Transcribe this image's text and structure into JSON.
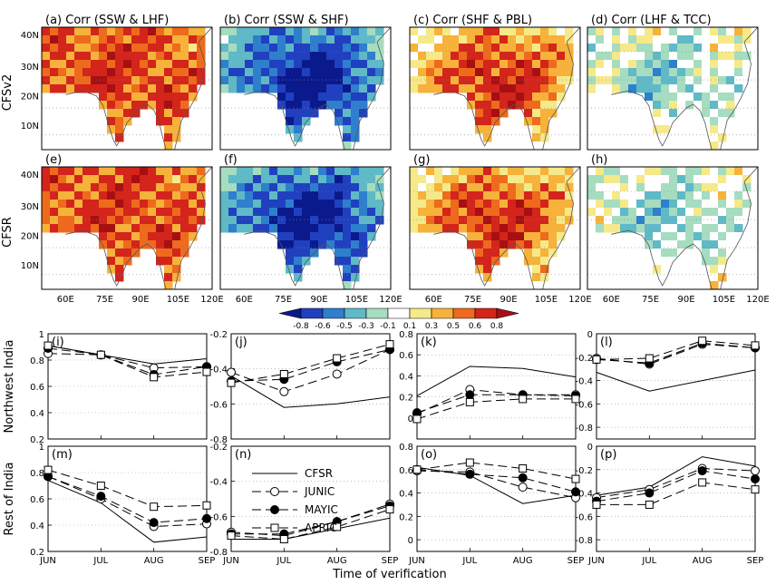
{
  "figure": {
    "map_row_labels": [
      "CFSv2",
      "CFSR"
    ],
    "map_lon_ticks": [
      "60E",
      "75E",
      "90E",
      "105E",
      "120E"
    ],
    "map_lat_ticks": [
      "40N",
      "30N",
      "20N",
      "10N"
    ],
    "colorbar_ticks": [
      "-0.8",
      "-0.6",
      "-0.5",
      "-0.3",
      "-0.1",
      "0.1",
      "0.3",
      "0.5",
      "0.6",
      "0.8"
    ],
    "colorbar_colors": [
      "#0a1a8c",
      "#2040c0",
      "#2e7fcc",
      "#5fb9c6",
      "#a6dcc0",
      "#ffffff",
      "#f5e98a",
      "#f6b23a",
      "#ee6a1c",
      "#d3251b",
      "#a80f12"
    ],
    "line_row_labels": [
      "Northwest India",
      "Rest of India"
    ],
    "xlabel": "Time of verification",
    "months": [
      "JUN",
      "JUL",
      "AUG",
      "SEP"
    ]
  },
  "maps": [
    {
      "label": "(a)",
      "title": "Corr (SSW & LHF)",
      "pattern": "positive_strong"
    },
    {
      "label": "(b)",
      "title": "Corr (SSW & SHF)",
      "pattern": "negative_strong"
    },
    {
      "label": "(c)",
      "title": "Corr (SHF & PBL)",
      "pattern": "positive_mixed"
    },
    {
      "label": "(d)",
      "title": "Corr (LHF & TCC)",
      "pattern": "weak_mixed"
    },
    {
      "label": "(e)",
      "title": "",
      "pattern": "positive_strong"
    },
    {
      "label": "(f)",
      "title": "",
      "pattern": "negative_strong"
    },
    {
      "label": "(g)",
      "title": "",
      "pattern": "positive_mixed"
    },
    {
      "label": "(h)",
      "title": "",
      "pattern": "weak_mixed"
    }
  ],
  "chart_data": [
    {
      "type": "line",
      "panel": "(i)",
      "region": "Northwest India",
      "x": [
        "JUN",
        "JUL",
        "AUG",
        "SEP"
      ],
      "ylim": [
        0.2,
        1.0
      ],
      "yticks": [
        "0.2",
        "0.4",
        "0.6",
        "0.8",
        "1"
      ],
      "series": [
        {
          "name": "CFSR",
          "values": [
            0.91,
            0.84,
            0.77,
            0.81
          ]
        },
        {
          "name": "JUNIC",
          "values": [
            0.85,
            0.84,
            0.74,
            0.75
          ]
        },
        {
          "name": "MAYIC",
          "values": [
            0.89,
            0.84,
            0.69,
            0.75
          ]
        },
        {
          "name": "APRIC",
          "values": [
            0.91,
            0.84,
            0.67,
            0.71
          ]
        }
      ]
    },
    {
      "type": "line",
      "panel": "(j)",
      "region": "Northwest India",
      "x": [
        "JUN",
        "JUL",
        "AUG",
        "SEP"
      ],
      "ylim": [
        -0.8,
        -0.2
      ],
      "yticks": [
        "-0.8",
        "-0.6",
        "-0.4",
        "-0.2"
      ],
      "series": [
        {
          "name": "CFSR",
          "values": [
            -0.44,
            -0.62,
            -0.6,
            -0.56
          ]
        },
        {
          "name": "JUNIC",
          "values": [
            -0.42,
            -0.53,
            -0.43,
            -0.29
          ]
        },
        {
          "name": "MAYIC",
          "values": [
            -0.47,
            -0.46,
            -0.36,
            -0.29
          ]
        },
        {
          "name": "APRIC",
          "values": [
            -0.48,
            -0.43,
            -0.34,
            -0.26
          ]
        }
      ]
    },
    {
      "type": "line",
      "panel": "(k)",
      "region": "Northwest India",
      "x": [
        "JUN",
        "JUL",
        "AUG",
        "SEP"
      ],
      "ylim": [
        -0.2,
        0.8
      ],
      "yticks": [
        "0",
        "0.2",
        "0.4",
        "0.6",
        "0.8"
      ],
      "series": [
        {
          "name": "CFSR",
          "values": [
            0.21,
            0.49,
            0.47,
            0.39
          ]
        },
        {
          "name": "JUNIC",
          "values": [
            0.04,
            0.27,
            0.22,
            0.22
          ]
        },
        {
          "name": "MAYIC",
          "values": [
            0.05,
            0.22,
            0.22,
            0.21
          ]
        },
        {
          "name": "APRIC",
          "values": [
            -0.01,
            0.15,
            0.18,
            0.18
          ]
        }
      ]
    },
    {
      "type": "line",
      "panel": "(l)",
      "region": "Northwest India",
      "x": [
        "JUN",
        "JUL",
        "AUG",
        "SEP"
      ],
      "ylim": [
        -0.9,
        0.0
      ],
      "yticks": [
        "-0.8",
        "-0.6",
        "-0.4",
        "-0.2",
        "0"
      ],
      "series": [
        {
          "name": "CFSR",
          "values": [
            -0.33,
            -0.49,
            -0.4,
            -0.31
          ]
        },
        {
          "name": "JUNIC",
          "values": [
            -0.21,
            -0.26,
            -0.09,
            -0.12
          ]
        },
        {
          "name": "MAYIC",
          "values": [
            -0.22,
            -0.25,
            -0.08,
            -0.12
          ]
        },
        {
          "name": "APRIC",
          "values": [
            -0.22,
            -0.21,
            -0.06,
            -0.1
          ]
        }
      ]
    },
    {
      "type": "line",
      "panel": "(m)",
      "region": "Rest of India",
      "x": [
        "JUN",
        "JUL",
        "AUG",
        "SEP"
      ],
      "ylim": [
        0.2,
        1.0
      ],
      "yticks": [
        "0.2",
        "0.4",
        "0.6",
        "0.8",
        "1"
      ],
      "series": [
        {
          "name": "CFSR",
          "values": [
            0.74,
            0.57,
            0.27,
            0.31
          ]
        },
        {
          "name": "JUNIC",
          "values": [
            0.77,
            0.6,
            0.39,
            0.41
          ]
        },
        {
          "name": "MAYIC",
          "values": [
            0.77,
            0.62,
            0.42,
            0.45
          ]
        },
        {
          "name": "APRIC",
          "values": [
            0.82,
            0.7,
            0.54,
            0.55
          ]
        }
      ]
    },
    {
      "type": "line",
      "panel": "(n)",
      "region": "Rest of India",
      "x": [
        "JUN",
        "JUL",
        "AUG",
        "SEP"
      ],
      "ylim": [
        -0.8,
        -0.2
      ],
      "yticks": [
        "-0.8",
        "-0.6",
        "-0.4",
        "-0.2"
      ],
      "series": [
        {
          "name": "CFSR",
          "values": [
            -0.73,
            -0.73,
            -0.67,
            -0.61
          ]
        },
        {
          "name": "JUNIC",
          "values": [
            -0.69,
            -0.71,
            -0.63,
            -0.53
          ]
        },
        {
          "name": "MAYIC",
          "values": [
            -0.7,
            -0.7,
            -0.63,
            -0.54
          ]
        },
        {
          "name": "APRIC",
          "values": [
            -0.71,
            -0.73,
            -0.66,
            -0.56
          ]
        }
      ]
    },
    {
      "type": "line",
      "panel": "(o)",
      "region": "Rest of India",
      "x": [
        "JUN",
        "JUL",
        "AUG",
        "SEP"
      ],
      "ylim": [
        -0.1,
        0.8
      ],
      "yticks": [
        "0",
        "0.2",
        "0.4",
        "0.6",
        "0.8"
      ],
      "series": [
        {
          "name": "CFSR",
          "values": [
            0.62,
            0.55,
            0.31,
            0.38
          ]
        },
        {
          "name": "JUNIC",
          "values": [
            0.59,
            0.58,
            0.45,
            0.36
          ]
        },
        {
          "name": "MAYIC",
          "values": [
            0.6,
            0.56,
            0.53,
            0.41
          ]
        },
        {
          "name": "APRIC",
          "values": [
            0.6,
            0.66,
            0.61,
            0.52
          ]
        }
      ]
    },
    {
      "type": "line",
      "panel": "(p)",
      "region": "Rest of India",
      "x": [
        "JUN",
        "JUL",
        "AUG",
        "SEP"
      ],
      "ylim": [
        -0.9,
        0.0
      ],
      "yticks": [
        "-0.8",
        "-0.6",
        "-0.4",
        "-0.2",
        "0"
      ],
      "series": [
        {
          "name": "CFSR",
          "values": [
            -0.42,
            -0.35,
            -0.09,
            -0.17
          ]
        },
        {
          "name": "JUNIC",
          "values": [
            -0.44,
            -0.37,
            -0.19,
            -0.21
          ]
        },
        {
          "name": "MAYIC",
          "values": [
            -0.47,
            -0.4,
            -0.21,
            -0.28
          ]
        },
        {
          "name": "APRIC",
          "values": [
            -0.5,
            -0.5,
            -0.31,
            -0.37
          ]
        }
      ]
    }
  ],
  "legend": {
    "entries": [
      {
        "name": "CFSR",
        "marker": "none"
      },
      {
        "name": "JUNIC",
        "marker": "open-circle"
      },
      {
        "name": "MAYIC",
        "marker": "filled-circle"
      },
      {
        "name": "APRIC",
        "marker": "open-square"
      }
    ]
  }
}
